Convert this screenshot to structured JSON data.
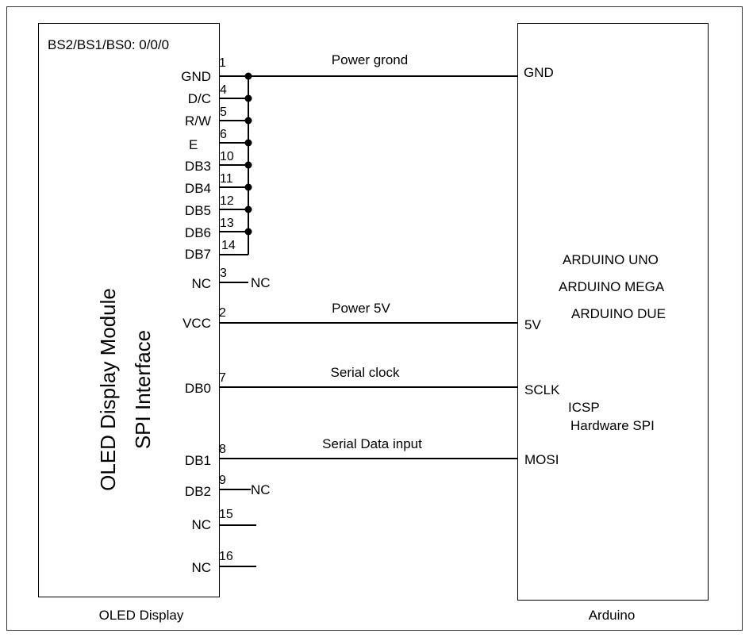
{
  "oled": {
    "mode_label": "BS2/BS1/BS0: 0/0/0",
    "title_line1": "OLED Display Module",
    "title_line2": "SPI Interface",
    "caption": "OLED Display",
    "pins": [
      {
        "label": "GND",
        "num": "1"
      },
      {
        "label": "D/C",
        "num": "4"
      },
      {
        "label": "R/W",
        "num": "5"
      },
      {
        "label": "E",
        "num": "6"
      },
      {
        "label": "DB3",
        "num": "10"
      },
      {
        "label": "DB4",
        "num": "11"
      },
      {
        "label": "DB5",
        "num": "12"
      },
      {
        "label": "DB6",
        "num": "13"
      },
      {
        "label": "DB7",
        "num": "14"
      },
      {
        "label": "NC",
        "num": "3"
      },
      {
        "label": "VCC",
        "num": "2"
      },
      {
        "label": "DB0",
        "num": "7"
      },
      {
        "label": "DB1",
        "num": "8"
      },
      {
        "label": "DB2",
        "num": "9"
      },
      {
        "label": "NC",
        "num": "15"
      },
      {
        "label": "NC",
        "num": "16"
      }
    ]
  },
  "arduino": {
    "caption": "Arduino",
    "pins": [
      "GND",
      "5V",
      "SCLK",
      "MOSI"
    ],
    "boards": [
      "ARDUINO UNO",
      "ARDUINO MEGA",
      "ARDUINO DUE"
    ],
    "icsp_line1": "ICSP",
    "icsp_line2": "Hardware  SPI"
  },
  "connections": {
    "gnd": "Power grond",
    "vcc": "Power 5V",
    "clk": "Serial clock",
    "data": "Serial Data input"
  },
  "nc_label": "NC"
}
